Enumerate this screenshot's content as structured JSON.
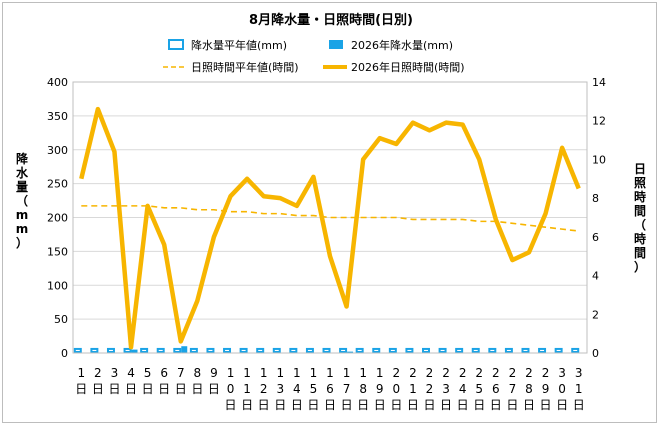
{
  "chart_data": {
    "type": "bar+line",
    "title": "8月降水量・日照時間(日別)",
    "categories": [
      "1日",
      "2日",
      "3日",
      "4日",
      "5日",
      "6日",
      "7日",
      "8日",
      "9日",
      "10日",
      "11日",
      "12日",
      "13日",
      "14日",
      "15日",
      "16日",
      "17日",
      "18日",
      "19日",
      "20日",
      "21日",
      "22日",
      "23日",
      "24日",
      "25日",
      "26日",
      "27日",
      "28日",
      "29日",
      "30日",
      "31日"
    ],
    "x_tick_labels": [
      [
        "1",
        "日"
      ],
      [
        "2",
        "日"
      ],
      [
        "3",
        "日"
      ],
      [
        "4",
        "日"
      ],
      [
        "5",
        "日"
      ],
      [
        "6",
        "日"
      ],
      [
        "7",
        "日"
      ],
      [
        "8",
        "日"
      ],
      [
        "9",
        "日"
      ],
      [
        "1",
        "0",
        "日"
      ],
      [
        "1",
        "1",
        "日"
      ],
      [
        "1",
        "2",
        "日"
      ],
      [
        "1",
        "3",
        "日"
      ],
      [
        "1",
        "4",
        "日"
      ],
      [
        "1",
        "5",
        "日"
      ],
      [
        "1",
        "6",
        "日"
      ],
      [
        "1",
        "7",
        "日"
      ],
      [
        "1",
        "8",
        "日"
      ],
      [
        "1",
        "9",
        "日"
      ],
      [
        "2",
        "0",
        "日"
      ],
      [
        "2",
        "1",
        "日"
      ],
      [
        "2",
        "2",
        "日"
      ],
      [
        "2",
        "3",
        "日"
      ],
      [
        "2",
        "4",
        "日"
      ],
      [
        "2",
        "5",
        "日"
      ],
      [
        "2",
        "6",
        "日"
      ],
      [
        "2",
        "7",
        "日"
      ],
      [
        "2",
        "8",
        "日"
      ],
      [
        "2",
        "9",
        "日"
      ],
      [
        "3",
        "0",
        "日"
      ],
      [
        "3",
        "1",
        "日"
      ]
    ],
    "y_left": {
      "label_chars": [
        "降",
        "水",
        "量",
        "（",
        "m",
        "m",
        "）"
      ],
      "min": 0,
      "max": 400,
      "step": 50,
      "ticks": [
        "0",
        "50",
        "100",
        "150",
        "200",
        "250",
        "300",
        "350",
        "400"
      ]
    },
    "y_right": {
      "label_chars": [
        "日",
        "照",
        "時",
        "間",
        "（",
        "時",
        "間",
        "）"
      ],
      "min": 0,
      "max": 14,
      "step": 2,
      "ticks": [
        "0",
        "2",
        "4",
        "6",
        "8",
        "10",
        "12",
        "14"
      ]
    },
    "legend": {
      "placement": "top",
      "items": [
        {
          "name": "降水量平年値(mm)",
          "kind": "bar-outline"
        },
        {
          "name": "2026年降水量(mm)",
          "kind": "bar-filled"
        },
        {
          "name": "日照時間平年値(時間)",
          "kind": "line-dashed"
        },
        {
          "name": "2026年日照時間(時間)",
          "kind": "line-thick"
        }
      ]
    },
    "series": [
      {
        "name": "降水量平年値(mm)",
        "axis": "left",
        "color": "#1aa3e6",
        "values": [
          6,
          6,
          6,
          6,
          6,
          6,
          6,
          6,
          6,
          6,
          6,
          6,
          6,
          6,
          6,
          6,
          6,
          6,
          6,
          6,
          6,
          6,
          6,
          6,
          6,
          6,
          6,
          6,
          6,
          6,
          6
        ]
      },
      {
        "name": "2026年降水量(mm)",
        "axis": "left",
        "color": "#1aa3e6",
        "values": [
          0,
          0,
          0,
          5,
          0,
          0,
          10,
          0,
          0,
          0,
          0,
          0,
          0,
          0,
          0,
          0,
          2,
          0,
          0,
          0,
          0,
          0,
          0,
          0,
          0,
          0,
          0,
          0,
          0,
          0,
          0
        ]
      },
      {
        "name": "日照時間平年値(時間)",
        "axis": "right",
        "color": "#f7b500",
        "values": [
          7.6,
          7.6,
          7.6,
          7.6,
          7.6,
          7.5,
          7.5,
          7.4,
          7.4,
          7.3,
          7.3,
          7.2,
          7.2,
          7.1,
          7.1,
          7.0,
          7.0,
          7.0,
          7.0,
          7.0,
          6.9,
          6.9,
          6.9,
          6.9,
          6.8,
          6.8,
          6.7,
          6.6,
          6.5,
          6.4,
          6.3
        ]
      },
      {
        "name": "2026年日照時間(時間)",
        "axis": "right",
        "color": "#f7b500",
        "values": [
          9.0,
          12.6,
          10.4,
          0.3,
          7.6,
          5.6,
          0.6,
          2.7,
          6.0,
          8.1,
          9.0,
          8.1,
          8.0,
          7.6,
          9.1,
          5.0,
          2.4,
          10.0,
          11.1,
          10.8,
          11.9,
          11.5,
          11.9,
          11.8,
          10.0,
          6.9,
          4.8,
          5.2,
          7.2,
          10.6,
          8.5
        ]
      }
    ],
    "grid": true
  }
}
